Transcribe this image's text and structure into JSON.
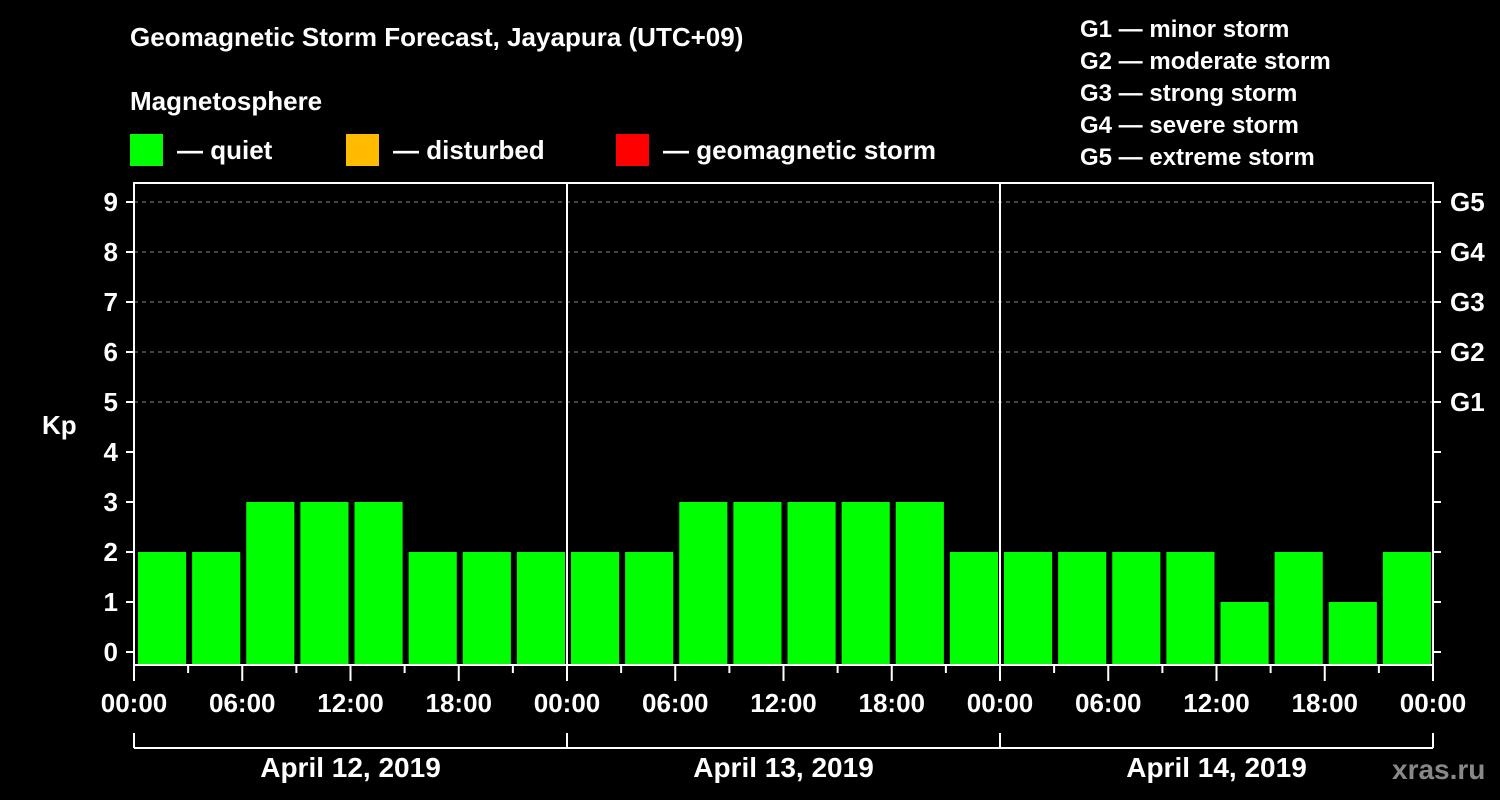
{
  "title": "Geomagnetic Storm Forecast, Jayapura (UTC+09)",
  "subtitle": "Magnetosphere",
  "legend": [
    {
      "label": "— quiet",
      "color": "#00ff00"
    },
    {
      "label": "— disturbed",
      "color": "#ffbb00"
    },
    {
      "label": "— geomagnetic storm",
      "color": "#ff0000"
    }
  ],
  "gscale": [
    "G1 — minor storm",
    "G2 — moderate storm",
    "G3 — strong storm",
    "G4 — severe storm",
    "G5 — extreme storm"
  ],
  "watermark": "xras.ru",
  "chart_data": {
    "type": "bar",
    "title": "Geomagnetic Storm Forecast, Jayapura (UTC+09)",
    "xlabel": "",
    "ylabel": "Kp",
    "ylim": [
      0,
      9
    ],
    "yticks": [
      "0",
      "1",
      "2",
      "3",
      "4",
      "5",
      "6",
      "7",
      "8",
      "9"
    ],
    "right_axis_ticks": [
      {
        "kp": 5,
        "label": "G1"
      },
      {
        "kp": 6,
        "label": "G2"
      },
      {
        "kp": 7,
        "label": "G3"
      },
      {
        "kp": 8,
        "label": "G4"
      },
      {
        "kp": 9,
        "label": "G5"
      }
    ],
    "grid": "dashed horizontal at Kp 5-9",
    "xtick_labels": [
      "00:00",
      "06:00",
      "12:00",
      "18:00",
      "00:00",
      "06:00",
      "12:00",
      "18:00",
      "00:00",
      "06:00",
      "12:00",
      "18:00",
      "00:00"
    ],
    "days": [
      "April 12, 2019",
      "April 13, 2019",
      "April 14, 2019"
    ],
    "categories": [
      "Apr12 00-03",
      "Apr12 03-06",
      "Apr12 06-09",
      "Apr12 09-12",
      "Apr12 12-15",
      "Apr12 15-18",
      "Apr12 18-21",
      "Apr12 21-24",
      "Apr13 00-03",
      "Apr13 03-06",
      "Apr13 06-09",
      "Apr13 09-12",
      "Apr13 12-15",
      "Apr13 15-18",
      "Apr13 18-21",
      "Apr13 21-24",
      "Apr14 00-03",
      "Apr14 03-06",
      "Apr14 06-09",
      "Apr14 09-12",
      "Apr14 12-15",
      "Apr14 15-18",
      "Apr14 18-21",
      "Apr14 21-24"
    ],
    "values": [
      2,
      2,
      3,
      3,
      3,
      2,
      2,
      2,
      2,
      2,
      3,
      3,
      3,
      3,
      3,
      2,
      2,
      2,
      2,
      2,
      1,
      2,
      1,
      2
    ],
    "bar_color": "#00ff00",
    "legend": [
      "quiet",
      "disturbed",
      "geomagnetic storm"
    ]
  }
}
